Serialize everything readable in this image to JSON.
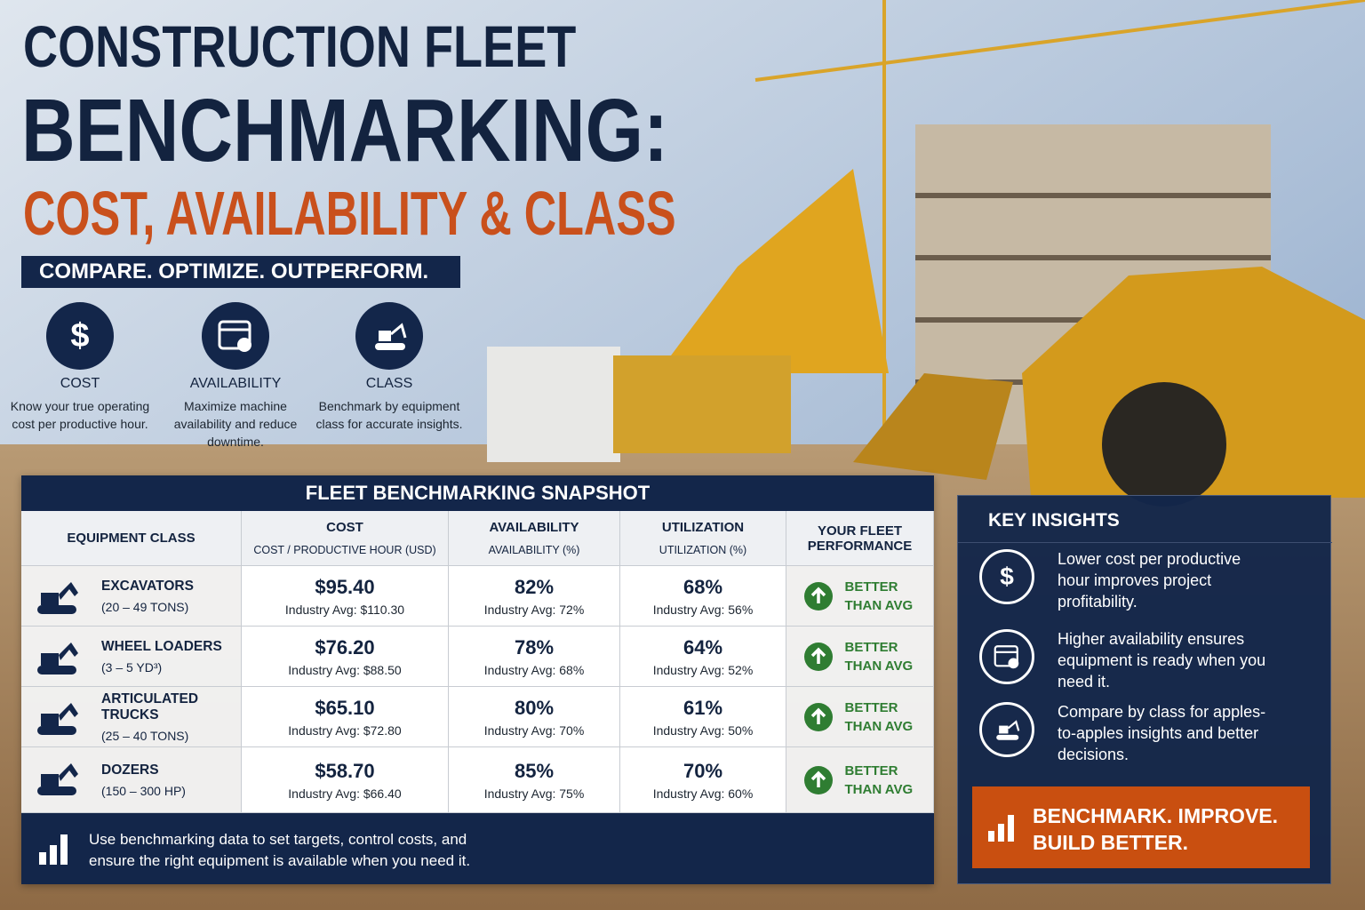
{
  "header": {
    "title_line1": "CONSTRUCTION FLEET",
    "title_line2": "BENCHMARKING:",
    "title_line3": "COST, AVAILABILITY & CLASS",
    "tagline": "COMPARE. OPTIMIZE. OUTPERFORM."
  },
  "features": [
    {
      "title": "COST",
      "text": "Know your true operating cost per productive hour."
    },
    {
      "title": "AVAILABILITY",
      "text": "Maximize machine availability and reduce downtime."
    },
    {
      "title": "CLASS",
      "text": "Benchmark by equipment class for accurate insights."
    }
  ],
  "table": {
    "title": "FLEET BENCHMARKING SNAPSHOT",
    "columns": [
      {
        "title": "EQUIPMENT CLASS"
      },
      {
        "title": "COST",
        "subtitle": "COST / PRODUCTIVE HOUR (USD)"
      },
      {
        "title": "AVAILABILITY",
        "subtitle": "AVAILABILITY (%)"
      },
      {
        "title": "UTILIZATION",
        "subtitle": "UTILIZATION (%)"
      },
      {
        "title": "YOUR FLEET PERFORMANCE"
      }
    ],
    "rows": [
      {
        "class": "EXCAVATORS",
        "size": "(20 – 49 TONS)",
        "cost": "$95.40",
        "cost_avg": "Industry Avg: $110.30",
        "availability": "82%",
        "availability_avg": "Industry Avg: 72%",
        "utilization": "68%",
        "utilization_avg": "Industry Avg: 56%",
        "performance": "BETTER THAN AVG"
      },
      {
        "class": "WHEEL LOADERS",
        "size": "(3 – 5 YD³)",
        "cost": "$76.20",
        "cost_avg": "Industry Avg: $88.50",
        "availability": "78%",
        "availability_avg": "Industry Avg: 68%",
        "utilization": "64%",
        "utilization_avg": "Industry Avg: 52%",
        "performance": "BETTER THAN AVG"
      },
      {
        "class": "ARTICULATED TRUCKS",
        "size": "(25 – 40 TONS)",
        "cost": "$65.10",
        "cost_avg": "Industry Avg: $72.80",
        "availability": "80%",
        "availability_avg": "Industry Avg: 70%",
        "utilization": "61%",
        "utilization_avg": "Industry Avg: 50%",
        "performance": "BETTER THAN AVG"
      },
      {
        "class": "DOZERS",
        "size": "(150 – 300 HP)",
        "cost": "$58.70",
        "cost_avg": "Industry Avg: $66.40",
        "availability": "85%",
        "availability_avg": "Industry Avg: 75%",
        "utilization": "70%",
        "utilization_avg": "Industry Avg: 60%",
        "performance": "BETTER THAN AVG"
      }
    ],
    "footer": "Use benchmarking data to set targets, control costs, and ensure the right equipment is available when you need it."
  },
  "insights": {
    "title": "KEY INSIGHTS",
    "items": [
      "Lower cost per productive hour improves project profitability.",
      "Higher availability ensures equipment is ready when you need it.",
      "Compare by class for apples-to-apples insights and better decisions."
    ],
    "callout": "BENCHMARK. IMPROVE. BUILD BETTER."
  }
}
